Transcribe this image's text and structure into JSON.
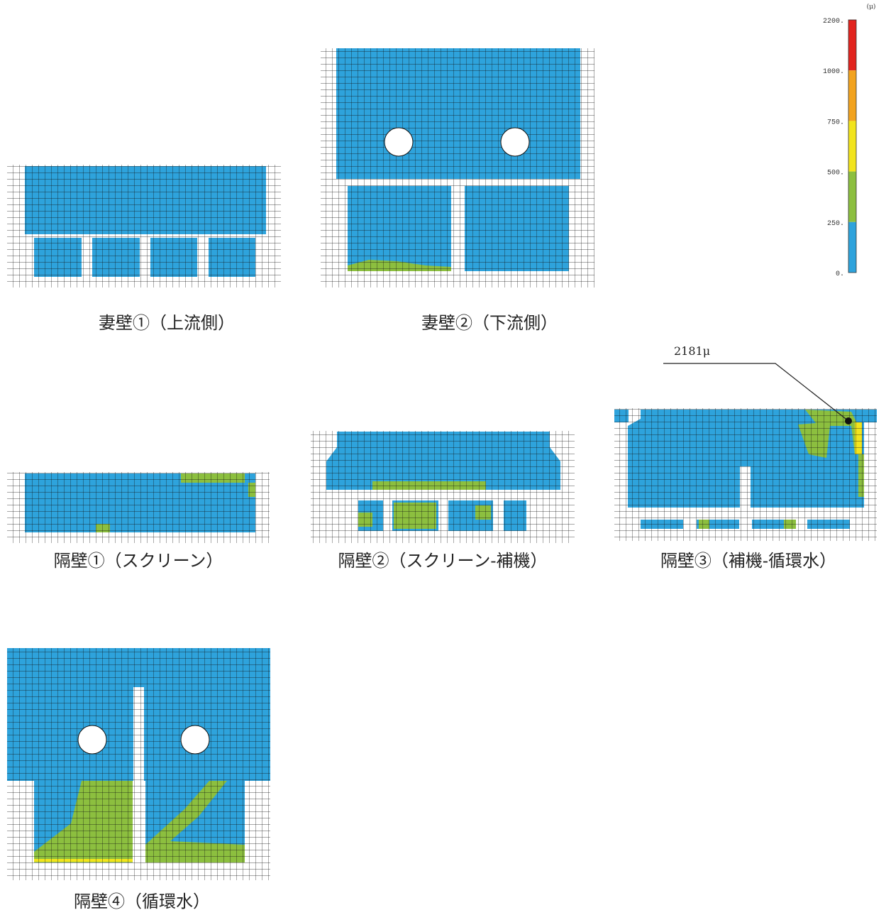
{
  "legend": {
    "unit": "(μ)",
    "labels": [
      "2200.",
      "1000.",
      "750.",
      "500.",
      "250.",
      "0."
    ],
    "colors": [
      "#e2231e",
      "#f2a31f",
      "#f2e41c",
      "#8cbf3f",
      "#2ea3dc"
    ]
  },
  "annotation": "2181μ",
  "panels": [
    {
      "caption": "妻壁①（上流側）"
    },
    {
      "caption": "妻壁②（下流側）"
    },
    {
      "caption": "隔壁①（スクリーン）"
    },
    {
      "caption": "隔壁②（スクリーン-補機）"
    },
    {
      "caption": "隔壁③（補機-循環水）"
    },
    {
      "caption": "隔壁④（循環水）"
    }
  ]
}
